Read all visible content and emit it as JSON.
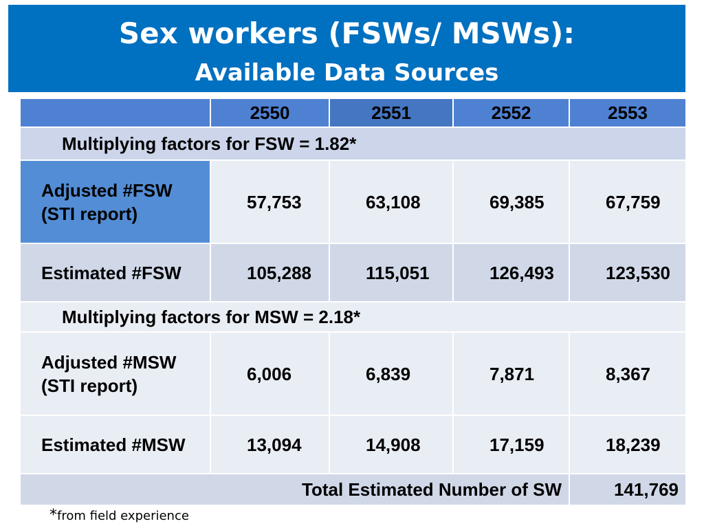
{
  "title": {
    "line1": "Sex workers (FSWs/ MSWs):",
    "line2": "Available Data Sources"
  },
  "table": {
    "years": [
      "2550",
      "2551",
      "2552",
      "2553"
    ],
    "fsw_factor": "Multiplying factors for FSW = 1.82*",
    "msw_factor": "Multiplying factors for MSW = 2.18*",
    "rows": [
      {
        "label": "Adjusted #FSW (STI report)",
        "values": [
          "57,753",
          "63,108",
          "69,385",
          "67,759"
        ]
      },
      {
        "label": "Estimated #FSW",
        "values": [
          "105,288",
          "115,051",
          "126,493",
          "123,530"
        ]
      },
      {
        "label": "Adjusted #MSW (STI report)",
        "values": [
          "6,006",
          "6,839",
          "7,871",
          "8,367"
        ]
      },
      {
        "label": "Estimated #MSW",
        "values": [
          "13,094",
          "14,908",
          "17,159",
          "18,239"
        ]
      }
    ],
    "total_label": "Total Estimated Number of SW",
    "total_value": "141,769"
  },
  "footnote": {
    "star": "*",
    "text": "from field experience"
  },
  "colors": {
    "title_bg": "#0070c0",
    "header_bg": "#4f81d3",
    "label_highlight": "#538dd5",
    "row_light": "#e9edf4",
    "row_mid": "#d0d8e8"
  }
}
